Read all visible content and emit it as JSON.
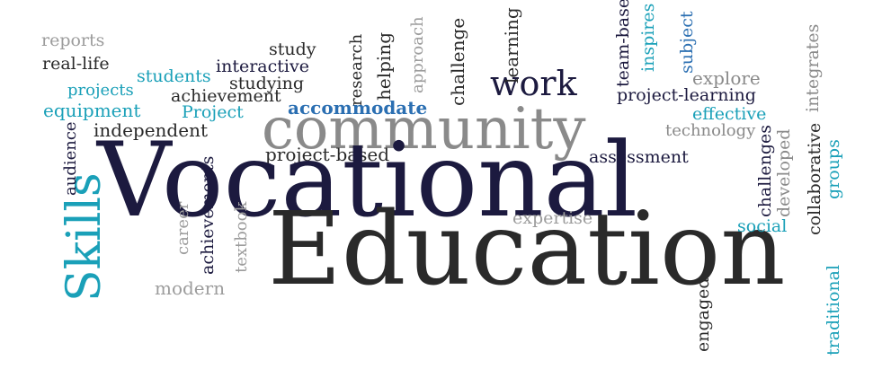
{
  "words": {
    "reports": "reports",
    "real_life": "real-life",
    "students": "students",
    "projects": "projects",
    "equipment": "equipment",
    "independent": "independent",
    "audience": "audience",
    "skills": "Skills",
    "study": "study",
    "interactive": "interactive",
    "studying": "studying",
    "achievement": "achievement",
    "project": "Project",
    "research": "research",
    "helping": "helping",
    "approach": "approach",
    "challenge": "challenge",
    "learning": "learning",
    "work": "work",
    "team_based": "team-based",
    "inspires": "inspires",
    "subject": "subject",
    "integrates": "integrates",
    "explore": "explore",
    "project_learning": "project-learning",
    "accommodate": "accommodate",
    "effective": "effective",
    "community": "community",
    "technology": "technology",
    "project_based": "project-based",
    "assessment": "assessment",
    "collaborative": "collaborative",
    "groups": "groups",
    "developed": "developed",
    "challenges": "challenges",
    "vocational": "Vocational",
    "expertise": "expertise",
    "social": "social",
    "education": "Education",
    "career": "career",
    "achievements": "achievements",
    "textbook": "textbook",
    "modern": "modern",
    "engaged": "engaged",
    "traditional": "traditional"
  },
  "colors": {
    "navy": "#1c1a3f",
    "dark": "#2a2a2a",
    "gray": "#8a8a8a",
    "teal": "#1aa0b8",
    "blue": "#2b6fb2"
  }
}
